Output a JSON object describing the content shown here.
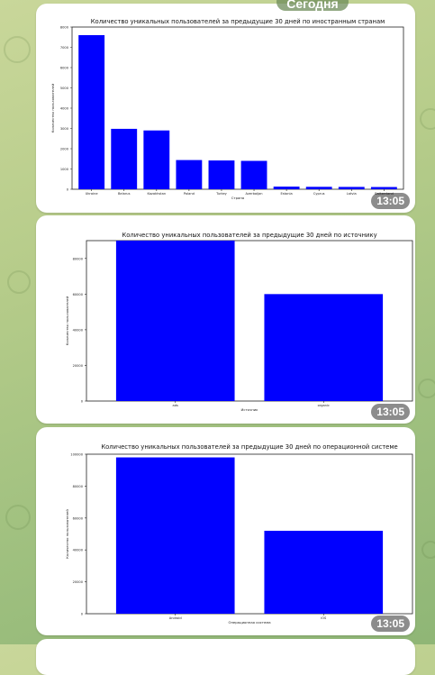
{
  "date_label": "Сегодня",
  "messages": [
    {
      "time": "13:05",
      "chart_data": {
        "type": "bar",
        "title": "Количество уникальных пользователей за предыдущие 30 дней по иностранным странам",
        "xlabel": "Страна",
        "ylabel": "Количество пользователей",
        "categories": [
          "Ukraine",
          "Belarus",
          "Kazakhstan",
          "Poland",
          "Turkey",
          "Azerbaijan",
          "Estonia",
          "Cyprus",
          "Latvia",
          "Switzerland"
        ],
        "values": [
          7600,
          2980,
          2900,
          1440,
          1420,
          1400,
          130,
          120,
          115,
          110
        ],
        "ylim": [
          0,
          8000
        ],
        "yticks": [
          "0",
          "1000",
          "2000",
          "3000",
          "4000",
          "5000",
          "6000",
          "7000",
          "8000"
        ],
        "color": "#0000ff"
      }
    },
    {
      "time": "13:05",
      "chart_data": {
        "type": "bar",
        "title": "Количество уникальных пользователей за предыдущие 30 дней по источнику",
        "xlabel": "Источник",
        "ylabel": "Количество пользователей",
        "categories": [
          "ads",
          "organic"
        ],
        "values": [
          90000,
          60000
        ],
        "ylim": [
          0,
          90000
        ],
        "yticks": [
          "0",
          "20000",
          "40000",
          "60000",
          "80000"
        ],
        "color": "#0000ff"
      }
    },
    {
      "time": "13:05",
      "chart_data": {
        "type": "bar",
        "title": "Количество уникальных пользователей за предыдущие 30 дней по операционной системе",
        "xlabel": "Операционная система",
        "ylabel": "Количество пользователей",
        "categories": [
          "Android",
          "iOS"
        ],
        "values": [
          98000,
          52000
        ],
        "ylim": [
          0,
          100000
        ],
        "yticks": [
          "0",
          "20000",
          "40000",
          "60000",
          "80000",
          "100000"
        ],
        "color": "#0000ff"
      }
    }
  ]
}
